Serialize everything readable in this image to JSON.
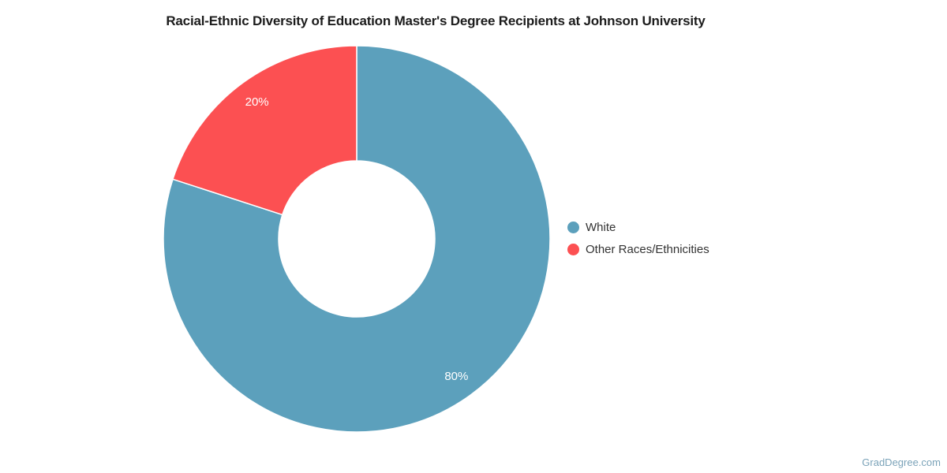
{
  "title": {
    "text": "Racial-Ethnic Diversity of Education Master's Degree Recipients at Johnson University",
    "color": "#1c1c1c"
  },
  "watermark": {
    "text": "GradDegree.com",
    "color": "#7ba3b9"
  },
  "chart_data": {
    "type": "pie",
    "donut": true,
    "title": "Racial-Ethnic Diversity of Education Master's Degree Recipients at Johnson University",
    "categories": [
      "White",
      "Other Races/Ethnicities"
    ],
    "values": [
      80,
      20
    ],
    "labels": [
      "80%",
      "20%"
    ],
    "colors": [
      "#5ca0bc",
      "#fc5052"
    ],
    "units": "%",
    "start_angle_deg": 0,
    "direction": "clockwise",
    "legend_position": "right",
    "label_color": "#ffffff",
    "legend_text_color": "#333333"
  }
}
